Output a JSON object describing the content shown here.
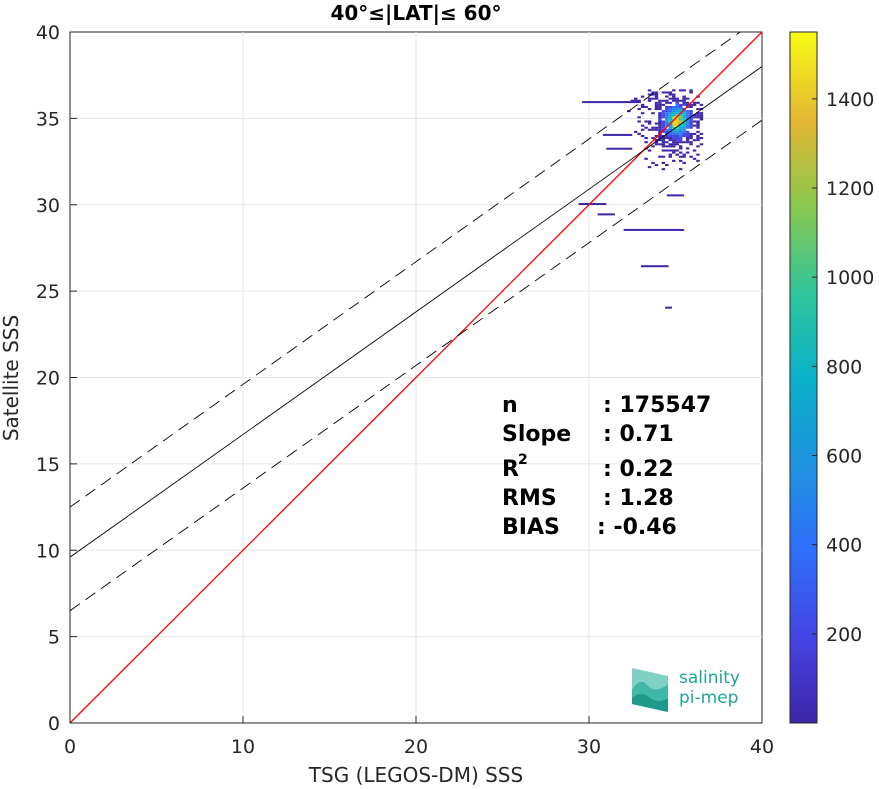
{
  "chart_data": {
    "type": "heatmap",
    "title": "40°≤|LAT|≤ 60°",
    "xlabel": "TSG (LEGOS-DM) SSS",
    "ylabel": "Satellite SSS",
    "xlim": [
      0,
      40
    ],
    "ylim": [
      0,
      40
    ],
    "xticks": [
      "0",
      "10",
      "20",
      "30",
      "40"
    ],
    "yticks": [
      "0",
      "5",
      "10",
      "15",
      "20",
      "25",
      "30",
      "35",
      "40"
    ],
    "grid": true,
    "colorbar": {
      "range": [
        0,
        1550
      ],
      "ticks": [
        "200",
        "400",
        "600",
        "800",
        "1000",
        "1200",
        "1400"
      ],
      "tick_values": [
        200,
        400,
        600,
        800,
        1000,
        1200,
        1400
      ]
    },
    "lines": [
      {
        "name": "identity",
        "color": "#ff0000",
        "style": "solid",
        "slope": 1.0,
        "intercept": 0
      },
      {
        "name": "fit",
        "color": "#000000",
        "style": "solid",
        "slope": 0.71,
        "intercept": 9.6
      },
      {
        "name": "fit +",
        "color": "#000000",
        "style": "dashed",
        "slope": 0.71,
        "intercept": 12.5
      },
      {
        "name": "fit -",
        "color": "#000000",
        "style": "dashed",
        "slope": 0.71,
        "intercept": 6.5
      }
    ],
    "density_cluster": {
      "x_range": [
        29.5,
        36.5
      ],
      "y_range": [
        22,
        37
      ],
      "peak": {
        "x": 35.0,
        "y": 34.8,
        "count": 1550
      }
    }
  },
  "stats": {
    "n_label": "n",
    "n_value": ": 175547",
    "slope_label": "Slope",
    "slope_value": ": 0.71",
    "r2_label": "R",
    "r2_sup": "2",
    "r2_value": ": 0.22",
    "rms_label": "RMS",
    "rms_value": ": 1.28",
    "bias_label": "BIAS",
    "bias_value": ": -0.46"
  },
  "logo": {
    "line1": "salinity",
    "line2": "pi-mep"
  }
}
